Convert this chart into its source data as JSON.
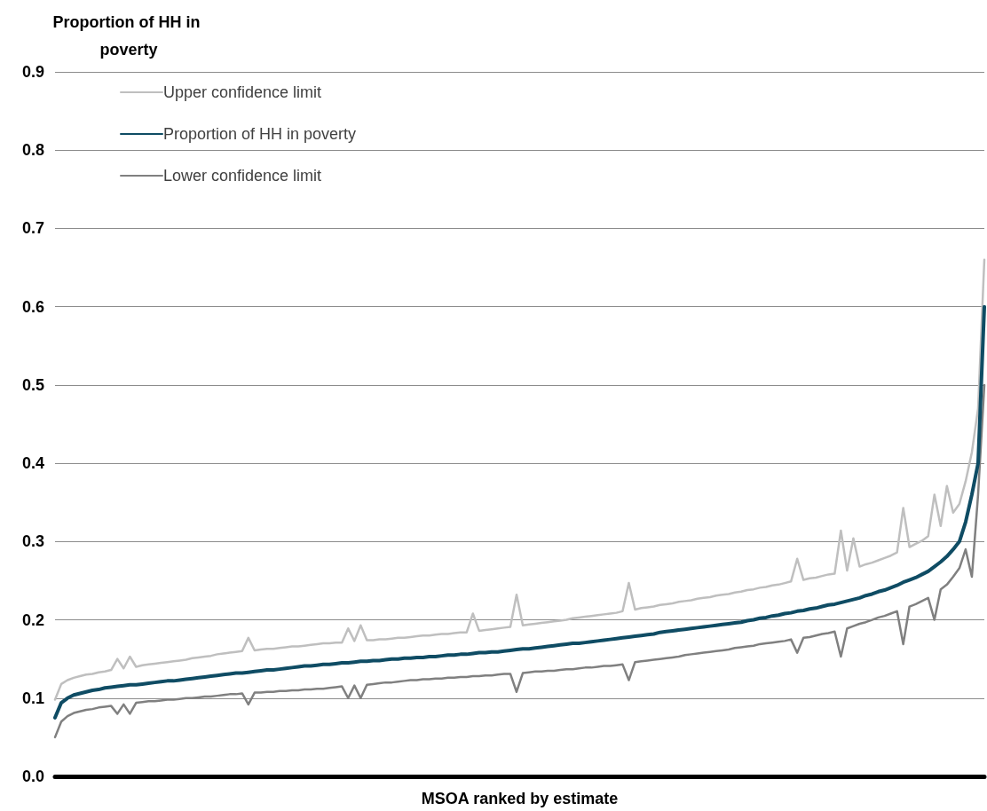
{
  "chart_data": {
    "type": "line",
    "ylabel": "Proportion of HH in poverty",
    "xlabel": "MSOA ranked by estimate",
    "categories": [
      null,
      null,
      null,
      null,
      null,
      null,
      null,
      null,
      null,
      null,
      null,
      null,
      null,
      null,
      null,
      null,
      null,
      null,
      null,
      null,
      null,
      null,
      null,
      null,
      null,
      null,
      null,
      null,
      null,
      null,
      null,
      null,
      null,
      null,
      null,
      null,
      null,
      null,
      null,
      null,
      null,
      null,
      null,
      null,
      null,
      null,
      null,
      null,
      null,
      null,
      null,
      null,
      null,
      null,
      null,
      null,
      null,
      null,
      null,
      null,
      null,
      null,
      null,
      null,
      null,
      null,
      null,
      null,
      null,
      null,
      null,
      null,
      null,
      null,
      null,
      null,
      null,
      null,
      null,
      null,
      null,
      null,
      null,
      null,
      null,
      null,
      null,
      null,
      null,
      null,
      null,
      null,
      null,
      null,
      null,
      null,
      null,
      null,
      null,
      null,
      null,
      null,
      null,
      null,
      null,
      null,
      null,
      null,
      null,
      null,
      null,
      null,
      null,
      null,
      null,
      null,
      null,
      null,
      null,
      null,
      null,
      null,
      null,
      null,
      null,
      null,
      null,
      null,
      null,
      null,
      null,
      null,
      null,
      null,
      null,
      null,
      null,
      null,
      null,
      null,
      null,
      null,
      null,
      null,
      null,
      null,
      null,
      null,
      null,
      null
    ],
    "series": [
      {
        "name": "Upper confidence limit",
        "color": "#bfbfbf",
        "values": [
          0.098,
          0.118,
          0.123,
          0.126,
          0.128,
          0.13,
          0.131,
          0.133,
          0.134,
          0.136,
          0.15,
          0.138,
          0.153,
          0.14,
          0.142,
          0.143,
          0.144,
          0.145,
          0.146,
          0.147,
          0.148,
          0.149,
          0.151,
          0.152,
          0.153,
          0.154,
          0.156,
          0.157,
          0.158,
          0.159,
          0.16,
          0.177,
          0.161,
          0.162,
          0.163,
          0.163,
          0.164,
          0.165,
          0.166,
          0.166,
          0.167,
          0.168,
          0.169,
          0.17,
          0.17,
          0.171,
          0.171,
          0.189,
          0.173,
          0.193,
          0.174,
          0.174,
          0.175,
          0.175,
          0.176,
          0.177,
          0.177,
          0.178,
          0.179,
          0.18,
          0.18,
          0.181,
          0.182,
          0.182,
          0.183,
          0.184,
          0.184,
          0.208,
          0.186,
          0.187,
          0.188,
          0.189,
          0.19,
          0.191,
          0.232,
          0.193,
          0.194,
          0.195,
          0.196,
          0.197,
          0.198,
          0.199,
          0.2,
          0.202,
          0.203,
          0.204,
          0.205,
          0.206,
          0.207,
          0.208,
          0.209,
          0.211,
          0.247,
          0.213,
          0.215,
          0.216,
          0.217,
          0.219,
          0.22,
          0.221,
          0.223,
          0.224,
          0.225,
          0.227,
          0.228,
          0.229,
          0.231,
          0.232,
          0.233,
          0.235,
          0.236,
          0.238,
          0.239,
          0.241,
          0.242,
          0.244,
          0.245,
          0.247,
          0.249,
          0.278,
          0.251,
          0.253,
          0.254,
          0.256,
          0.258,
          0.259,
          0.314,
          0.263,
          0.304,
          0.268,
          0.271,
          0.273,
          0.276,
          0.279,
          0.282,
          0.286,
          0.343,
          0.293,
          0.297,
          0.301,
          0.307,
          0.36,
          0.32,
          0.371,
          0.337,
          0.348,
          0.377,
          0.414,
          0.47,
          0.66
        ]
      },
      {
        "name": "Proportion of HH in poverty",
        "color": "#0f4c64",
        "values": [
          0.075,
          0.094,
          0.1,
          0.104,
          0.106,
          0.108,
          0.11,
          0.111,
          0.113,
          0.114,
          0.115,
          0.116,
          0.117,
          0.117,
          0.118,
          0.119,
          0.12,
          0.121,
          0.122,
          0.122,
          0.123,
          0.124,
          0.125,
          0.126,
          0.127,
          0.128,
          0.129,
          0.13,
          0.131,
          0.132,
          0.132,
          0.133,
          0.134,
          0.135,
          0.136,
          0.136,
          0.137,
          0.138,
          0.139,
          0.14,
          0.141,
          0.141,
          0.142,
          0.143,
          0.143,
          0.144,
          0.145,
          0.145,
          0.146,
          0.147,
          0.147,
          0.148,
          0.148,
          0.149,
          0.15,
          0.15,
          0.151,
          0.151,
          0.152,
          0.152,
          0.153,
          0.153,
          0.154,
          0.155,
          0.155,
          0.156,
          0.156,
          0.157,
          0.158,
          0.158,
          0.159,
          0.159,
          0.16,
          0.161,
          0.162,
          0.163,
          0.163,
          0.164,
          0.165,
          0.166,
          0.167,
          0.168,
          0.169,
          0.17,
          0.17,
          0.171,
          0.172,
          0.173,
          0.174,
          0.175,
          0.176,
          0.177,
          0.178,
          0.179,
          0.18,
          0.181,
          0.182,
          0.184,
          0.185,
          0.186,
          0.187,
          0.188,
          0.189,
          0.19,
          0.191,
          0.192,
          0.193,
          0.194,
          0.195,
          0.196,
          0.197,
          0.199,
          0.2,
          0.202,
          0.203,
          0.205,
          0.206,
          0.208,
          0.209,
          0.211,
          0.212,
          0.214,
          0.215,
          0.217,
          0.219,
          0.22,
          0.222,
          0.224,
          0.226,
          0.228,
          0.231,
          0.233,
          0.236,
          0.238,
          0.241,
          0.244,
          0.248,
          0.251,
          0.254,
          0.258,
          0.262,
          0.268,
          0.274,
          0.281,
          0.29,
          0.3,
          0.325,
          0.36,
          0.4,
          0.6
        ]
      },
      {
        "name": "Lower confidence limit",
        "color": "#808080",
        "values": [
          0.05,
          0.07,
          0.077,
          0.081,
          0.083,
          0.085,
          0.086,
          0.088,
          0.089,
          0.09,
          0.08,
          0.092,
          0.08,
          0.094,
          0.095,
          0.096,
          0.096,
          0.097,
          0.098,
          0.098,
          0.099,
          0.1,
          0.1,
          0.101,
          0.102,
          0.102,
          0.103,
          0.104,
          0.105,
          0.105,
          0.106,
          0.092,
          0.107,
          0.107,
          0.108,
          0.108,
          0.109,
          0.109,
          0.11,
          0.11,
          0.111,
          0.111,
          0.112,
          0.112,
          0.113,
          0.114,
          0.115,
          0.1,
          0.116,
          0.1,
          0.117,
          0.118,
          0.119,
          0.12,
          0.12,
          0.121,
          0.122,
          0.123,
          0.123,
          0.124,
          0.124,
          0.125,
          0.125,
          0.126,
          0.126,
          0.127,
          0.127,
          0.128,
          0.128,
          0.129,
          0.129,
          0.13,
          0.131,
          0.131,
          0.108,
          0.132,
          0.133,
          0.134,
          0.134,
          0.135,
          0.135,
          0.136,
          0.137,
          0.137,
          0.138,
          0.139,
          0.139,
          0.14,
          0.141,
          0.141,
          0.142,
          0.143,
          0.123,
          0.146,
          0.147,
          0.148,
          0.149,
          0.15,
          0.151,
          0.152,
          0.153,
          0.155,
          0.156,
          0.157,
          0.158,
          0.159,
          0.16,
          0.161,
          0.162,
          0.164,
          0.165,
          0.166,
          0.167,
          0.169,
          0.17,
          0.171,
          0.172,
          0.173,
          0.175,
          0.158,
          0.177,
          0.178,
          0.18,
          0.182,
          0.183,
          0.185,
          0.153,
          0.189,
          0.192,
          0.195,
          0.197,
          0.2,
          0.203,
          0.205,
          0.208,
          0.211,
          0.169,
          0.217,
          0.22,
          0.224,
          0.228,
          0.2,
          0.239,
          0.245,
          0.255,
          0.266,
          0.29,
          0.255,
          0.36,
          0.5
        ]
      }
    ],
    "ylim": [
      0,
      0.9
    ],
    "yticks": [
      {
        "value": 0,
        "label": "0.0"
      },
      0.1,
      0.2,
      0.3,
      0.4,
      0.5,
      0.6,
      0.7,
      0.8,
      0.9
    ],
    "grid": "y",
    "legend": "top left",
    "marker": "none",
    "line_style": "solid"
  }
}
